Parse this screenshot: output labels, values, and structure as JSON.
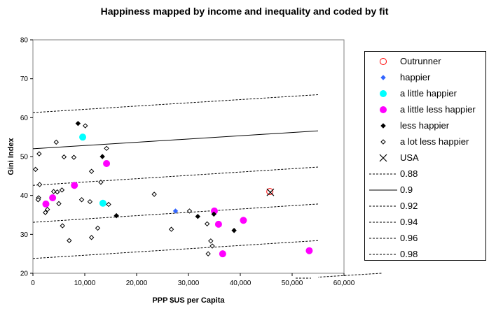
{
  "chart_data": {
    "type": "scatter",
    "title": "Happiness mapped by income and inequality and coded by fit",
    "xlabel": "PPP $US per Capita",
    "ylabel": "Gini Index",
    "xlim": [
      0,
      60000
    ],
    "ylim": [
      20,
      80
    ],
    "x_ticks": [
      0,
      10000,
      20000,
      30000,
      40000,
      50000,
      60000
    ],
    "x_tick_labels": [
      "0",
      "10,000",
      "20,000",
      "30,000",
      "40,000",
      "50,000",
      "60,000"
    ],
    "y_ticks": [
      20,
      30,
      40,
      50,
      60,
      70,
      80
    ],
    "y_tick_labels": [
      "20",
      "30",
      "40",
      "50",
      "60",
      "70",
      "80"
    ],
    "grid": false,
    "legend_position": "right",
    "series": [
      {
        "name": "Outrunner",
        "marker": "circle-open",
        "color": "#ff0000",
        "points": [
          [
            45700,
            41
          ]
        ]
      },
      {
        "name": "happier",
        "marker": "diamond",
        "color": "#3366ff",
        "points": [
          [
            27500,
            36
          ]
        ]
      },
      {
        "name": "a little happier",
        "marker": "circle",
        "color": "#00ffff",
        "points": [
          [
            9600,
            55
          ],
          [
            13500,
            38
          ]
        ]
      },
      {
        "name": "a little less happier",
        "marker": "circle",
        "color": "#ff00ff",
        "points": [
          [
            2500,
            37.8
          ],
          [
            3800,
            39.4
          ],
          [
            8000,
            42.6
          ],
          [
            14200,
            48.2
          ],
          [
            35000,
            36
          ],
          [
            35800,
            32.6
          ],
          [
            36600,
            25
          ],
          [
            40600,
            33.6
          ],
          [
            53300,
            25.8
          ]
        ]
      },
      {
        "name": "less happier",
        "marker": "diamond",
        "color": "#000000",
        "points": [
          [
            8700,
            58.5
          ],
          [
            13400,
            50
          ],
          [
            16100,
            34.8
          ],
          [
            31800,
            34.6
          ],
          [
            34900,
            35.2
          ],
          [
            38800,
            31
          ]
        ]
      },
      {
        "name": "a lot less happier",
        "marker": "diamond-open",
        "color": "#000000",
        "points": [
          [
            500,
            46.7
          ],
          [
            1200,
            50.7
          ],
          [
            1300,
            42.8
          ],
          [
            1100,
            39.4
          ],
          [
            1000,
            38.9
          ],
          [
            2400,
            35.6
          ],
          [
            2800,
            36.4
          ],
          [
            4000,
            41
          ],
          [
            4500,
            53.7
          ],
          [
            4700,
            40.9
          ],
          [
            5000,
            37.9
          ],
          [
            5600,
            41.4
          ],
          [
            5700,
            32.2
          ],
          [
            6000,
            49.9
          ],
          [
            7000,
            28.4
          ],
          [
            7900,
            49.8
          ],
          [
            9400,
            38.9
          ],
          [
            10100,
            57.9
          ],
          [
            11000,
            38.4
          ],
          [
            11300,
            46.2
          ],
          [
            11300,
            29.2
          ],
          [
            12500,
            31.6
          ],
          [
            13100,
            43.4
          ],
          [
            14200,
            52.1
          ],
          [
            14600,
            37.7
          ],
          [
            23400,
            40.3
          ],
          [
            26700,
            31.3
          ],
          [
            30200,
            36
          ],
          [
            33600,
            32.7
          ],
          [
            33800,
            25
          ],
          [
            34300,
            28.3
          ],
          [
            34600,
            27
          ]
        ]
      },
      {
        "name": "USA",
        "marker": "x",
        "color": "#000000",
        "points": [
          [
            45800,
            40.8
          ]
        ]
      }
    ],
    "fit_lines": [
      {
        "name": "0.88",
        "style": "dashed",
        "y_at_0": 61.3,
        "y_at_55000": 65.9
      },
      {
        "name": "0.9",
        "style": "solid",
        "y_at_0": 52,
        "y_at_55000": 56.6
      },
      {
        "name": "0.92",
        "style": "dashed",
        "y_at_0": 42.6,
        "y_at_55000": 47.3
      },
      {
        "name": "0.94",
        "style": "dashed",
        "y_at_0": 33.1,
        "y_at_55000": 37.8
      },
      {
        "name": "0.96",
        "style": "dashed",
        "y_at_0": 23.8,
        "y_at_55000": 28.4
      },
      {
        "name": "0.98",
        "style": "dashed",
        "y_at_0": 14.5,
        "y_at_55000": 19
      }
    ]
  },
  "legend": {
    "entries": [
      {
        "label": "Outrunner",
        "marker": "circle-open",
        "color": "#ff0000"
      },
      {
        "label": "happier",
        "marker": "diamond",
        "color": "#3366ff"
      },
      {
        "label": "a little happier",
        "marker": "circle",
        "color": "#00ffff"
      },
      {
        "label": "a little less happier",
        "marker": "circle",
        "color": "#ff00ff"
      },
      {
        "label": "less happier",
        "marker": "diamond",
        "color": "#000000"
      },
      {
        "label": "a lot less happier",
        "marker": "diamond-open",
        "color": "#000000"
      },
      {
        "label": "USA",
        "marker": "x",
        "color": "#000000"
      },
      {
        "label": "0.88",
        "marker": "line-dashed",
        "color": "#000000"
      },
      {
        "label": "0.9",
        "marker": "line-solid",
        "color": "#000000"
      },
      {
        "label": "0.92",
        "marker": "line-dashed",
        "color": "#000000"
      },
      {
        "label": "0.94",
        "marker": "line-dashed",
        "color": "#000000"
      },
      {
        "label": "0.96",
        "marker": "line-dashed",
        "color": "#000000"
      },
      {
        "label": "0.98",
        "marker": "line-dashed",
        "color": "#000000"
      }
    ]
  }
}
